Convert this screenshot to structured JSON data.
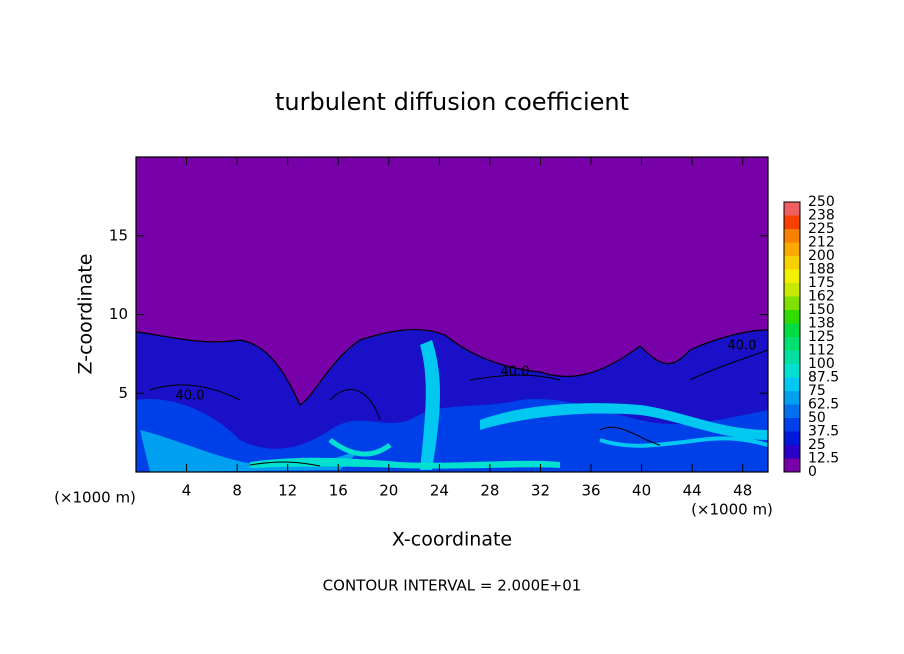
{
  "chart_data": {
    "type": "contour",
    "title": "turbulent diffusion coefficient",
    "xlabel": "X-coordinate",
    "ylabel": "Z-coordinate",
    "x_unit_labels": [
      "(×1000 m)",
      "(×1000 m)"
    ],
    "footer": "CONTOUR INTERVAL = 2.000E+01",
    "xlim": [
      0,
      50
    ],
    "xticks": [
      4,
      8,
      12,
      16,
      20,
      24,
      28,
      32,
      36,
      40,
      44,
      48
    ],
    "ylim": [
      0,
      20
    ],
    "yticks": [
      5,
      10,
      15
    ],
    "contour_labels": [
      "40.0",
      "40.0",
      "40.0"
    ],
    "colorbar": {
      "levels": [
        0,
        12.5,
        25,
        37.5,
        50,
        62.5,
        75,
        87.5,
        100,
        112,
        125,
        138,
        150,
        162,
        175,
        188,
        200,
        212,
        225,
        238,
        250
      ],
      "colors": [
        "#7800a8",
        "#2a00c8",
        "#0018d8",
        "#0040e8",
        "#0070f0",
        "#00a0f0",
        "#00c8f0",
        "#00e0d0",
        "#00e0a0",
        "#00e070",
        "#00dc40",
        "#30dc00",
        "#80e000",
        "#c8e800",
        "#f0f000",
        "#f8d000",
        "#f8a800",
        "#f88000",
        "#f84000",
        "#f06060"
      ]
    }
  }
}
